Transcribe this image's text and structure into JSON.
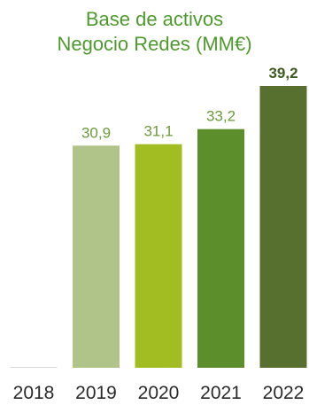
{
  "chart_data": {
    "type": "bar",
    "title_lines": [
      "Base de activos",
      "Negocio Redes (MM€)"
    ],
    "categories": [
      "2018",
      "2019",
      "2020",
      "2021",
      "2022"
    ],
    "values": [
      null,
      30.9,
      31.1,
      33.2,
      39.2
    ],
    "value_labels": [
      "",
      "30,9",
      "31,1",
      "33,2",
      "39,2"
    ],
    "highlight_last_label_bold": true,
    "ylim": [
      0,
      39.2
    ],
    "grid": false,
    "legend": "none",
    "colors": {
      "title": "#4f9a2e",
      "bars": [
        "#d9d9d9",
        "#b0c48a",
        "#a2bd22",
        "#5c8f2c",
        "#58702f"
      ],
      "labels": [
        "#555555",
        "#6b9b3a",
        "#6b9b3a",
        "#6b9b3a",
        "#3f5a1e"
      ]
    }
  }
}
